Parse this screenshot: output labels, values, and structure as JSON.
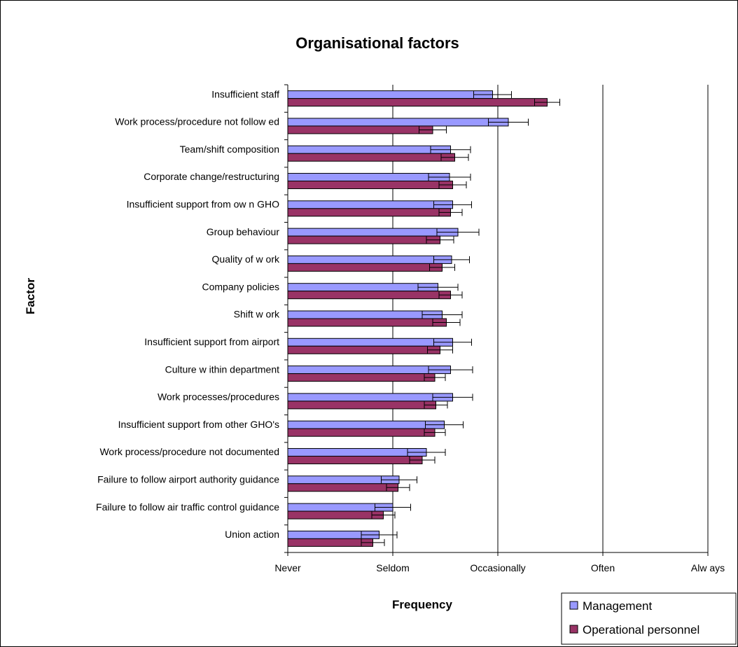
{
  "chart_data": {
    "type": "bar",
    "orientation": "horizontal",
    "title": "Organisational factors",
    "xlabel": "Frequency",
    "ylabel": "Factor",
    "x_tick_labels": [
      "Never",
      "Seldom",
      "Occasionally",
      "Often",
      "Alw ays"
    ],
    "xlim": [
      1,
      5
    ],
    "grid": "vertical",
    "legend_position": "bottom-right",
    "categories": [
      "Insufficient staff",
      "Work process/procedure not follow ed",
      "Team/shift composition",
      "Corporate change/restructuring",
      "Insufficient support from ow n GHO",
      "Group behaviour",
      "Quality of w ork",
      "Company policies",
      "Shift w ork",
      "Insufficient support from airport",
      "Culture w ithin department",
      "Work processes/procedures",
      "Insufficient support from other GHO's",
      "Work process/procedure not documented",
      "Failure to follow  airport authority guidance",
      "Failure to follow  air traffic control guidance",
      "Union action"
    ],
    "series": [
      {
        "name": "Management",
        "color": "#9999ff",
        "values": [
          2.95,
          3.1,
          2.55,
          2.54,
          2.57,
          2.62,
          2.56,
          2.43,
          2.47,
          2.57,
          2.55,
          2.57,
          2.49,
          2.32,
          2.06,
          2.0,
          1.87
        ],
        "errors": [
          0.18,
          0.19,
          0.19,
          0.2,
          0.18,
          0.2,
          0.17,
          0.19,
          0.19,
          0.18,
          0.21,
          0.19,
          0.18,
          0.18,
          0.17,
          0.17,
          0.17
        ]
      },
      {
        "name": "Operational personnel",
        "color": "#993366",
        "values": [
          3.47,
          2.38,
          2.59,
          2.57,
          2.55,
          2.45,
          2.47,
          2.55,
          2.51,
          2.45,
          2.4,
          2.41,
          2.4,
          2.28,
          2.05,
          1.91,
          1.81
        ],
        "errors": [
          0.12,
          0.13,
          0.13,
          0.13,
          0.11,
          0.13,
          0.12,
          0.11,
          0.13,
          0.12,
          0.1,
          0.11,
          0.1,
          0.12,
          0.11,
          0.11,
          0.11
        ]
      }
    ]
  }
}
